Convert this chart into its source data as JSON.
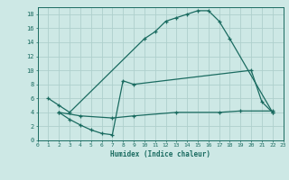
{
  "xlabel": "Humidex (Indice chaleur)",
  "bg_color": "#cde8e5",
  "grid_color": "#aed0cc",
  "line_color": "#1a6b60",
  "xlim": [
    0,
    23
  ],
  "ylim": [
    0,
    19
  ],
  "xticks": [
    0,
    1,
    2,
    3,
    4,
    5,
    6,
    7,
    8,
    9,
    10,
    11,
    12,
    13,
    14,
    15,
    16,
    17,
    18,
    19,
    20,
    21,
    22,
    23
  ],
  "yticks": [
    0,
    2,
    4,
    6,
    8,
    10,
    12,
    14,
    16,
    18
  ],
  "line1_x": [
    1,
    2,
    3,
    10,
    11,
    12,
    13,
    14,
    15,
    16,
    17,
    18,
    22
  ],
  "line1_y": [
    6,
    5,
    4,
    14.5,
    15.5,
    17,
    17.5,
    18,
    18.5,
    18.5,
    17,
    14.5,
    4
  ],
  "line2_x": [
    2,
    3,
    4,
    5,
    6,
    7,
    8,
    9,
    20,
    21,
    22
  ],
  "line2_y": [
    4,
    3,
    2.2,
    1.5,
    1,
    0.8,
    8.5,
    8,
    10,
    5.5,
    4
  ],
  "line3_x": [
    2,
    4,
    7,
    9,
    13,
    17,
    19,
    22
  ],
  "line3_y": [
    4,
    3.5,
    3.2,
    3.5,
    4.0,
    4.0,
    4.2,
    4.2
  ]
}
